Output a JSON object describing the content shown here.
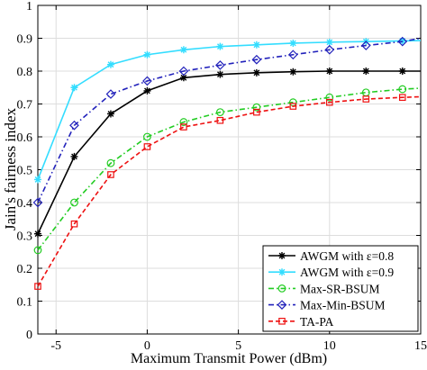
{
  "chart_data": {
    "type": "line",
    "xlabel": "Maximum Transmit Power (dBm)",
    "ylabel": "Jain's fairness index",
    "xlim": [
      -6,
      15
    ],
    "ylim": [
      0,
      1
    ],
    "xticks": [
      -5,
      0,
      5,
      10,
      15
    ],
    "yticks": [
      0,
      0.1,
      0.2,
      0.3,
      0.4,
      0.5,
      0.6,
      0.7,
      0.8,
      0.9,
      1
    ],
    "grid": true,
    "legend_position": "bottom-right",
    "x": [
      -6,
      -4,
      -2,
      0,
      2,
      4,
      6,
      8,
      10,
      12,
      14,
      15
    ],
    "series": [
      {
        "name": "AWGM with ε=0.8",
        "color": "#000000",
        "dash": "solid",
        "marker": "star",
        "values": [
          0.305,
          0.54,
          0.67,
          0.74,
          0.78,
          0.79,
          0.795,
          0.798,
          0.8,
          0.8,
          0.8,
          0.8
        ]
      },
      {
        "name": "AWGM with ε=0.9",
        "color": "#33ddff",
        "dash": "solid",
        "marker": "star",
        "values": [
          0.47,
          0.75,
          0.82,
          0.85,
          0.865,
          0.875,
          0.88,
          0.885,
          0.888,
          0.89,
          0.892,
          0.893
        ]
      },
      {
        "name": "Max-SR-BSUM",
        "color": "#22cc22",
        "dash": "dashdot",
        "marker": "circle",
        "values": [
          0.255,
          0.4,
          0.52,
          0.6,
          0.645,
          0.675,
          0.69,
          0.705,
          0.72,
          0.735,
          0.745,
          0.748
        ]
      },
      {
        "name": "Max-Min-BSUM",
        "color": "#2222bb",
        "dash": "dashdot",
        "marker": "diamond",
        "values": [
          0.4,
          0.635,
          0.73,
          0.77,
          0.8,
          0.818,
          0.835,
          0.85,
          0.865,
          0.878,
          0.89,
          0.9
        ]
      },
      {
        "name": "TA-PA",
        "color": "#ee1111",
        "dash": "dashed",
        "marker": "square",
        "values": [
          0.145,
          0.335,
          0.485,
          0.57,
          0.63,
          0.65,
          0.675,
          0.693,
          0.705,
          0.715,
          0.72,
          0.722
        ]
      }
    ]
  }
}
